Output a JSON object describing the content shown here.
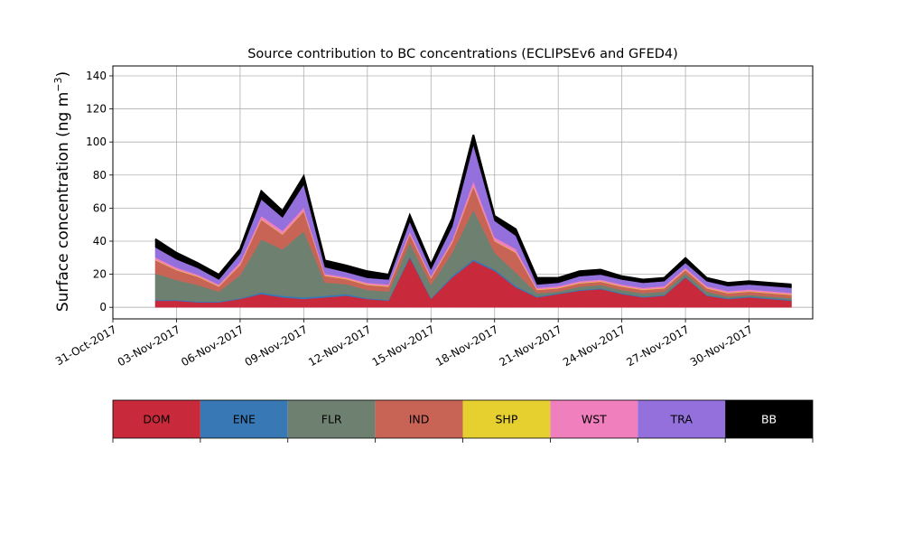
{
  "chart_data": {
    "type": "area",
    "stacked": true,
    "title": "Source contribution to BC concentrations (ECLIPSEv6 and GFED4)",
    "ylabel": "Surface concentration (ng m",
    "ylabel_sup": "−3",
    "ylabel_close": ")",
    "xlim": [
      "2017-10-31",
      "2017-12-03"
    ],
    "ylim": [
      -7,
      146
    ],
    "yticks": [
      0,
      20,
      40,
      60,
      80,
      100,
      120,
      140
    ],
    "xticks": [
      "31-Oct-2017",
      "03-Nov-2017",
      "06-Nov-2017",
      "09-Nov-2017",
      "12-Nov-2017",
      "15-Nov-2017",
      "18-Nov-2017",
      "21-Nov-2017",
      "24-Nov-2017",
      "27-Nov-2017",
      "30-Nov-2017"
    ],
    "grid": true,
    "legend_position": "bottom-colorbar",
    "x": [
      "2017-11-02",
      "2017-11-03",
      "2017-11-04",
      "2017-11-05",
      "2017-11-06",
      "2017-11-07",
      "2017-11-08",
      "2017-11-09",
      "2017-11-10",
      "2017-11-11",
      "2017-11-12",
      "2017-11-13",
      "2017-11-14",
      "2017-11-15",
      "2017-11-16",
      "2017-11-17",
      "2017-11-18",
      "2017-11-19",
      "2017-11-20",
      "2017-11-21",
      "2017-11-22",
      "2017-11-23",
      "2017-11-24",
      "2017-11-25",
      "2017-11-26",
      "2017-11-27",
      "2017-11-28",
      "2017-11-29",
      "2017-11-30",
      "2017-12-01",
      "2017-12-02"
    ],
    "series": [
      {
        "name": "DOM",
        "color": "#c8293b",
        "values": [
          4,
          4,
          3,
          3,
          5,
          8,
          6,
          5,
          6,
          7,
          5,
          4,
          30,
          5,
          18,
          28,
          22,
          12,
          6,
          8,
          10,
          11,
          8,
          6,
          7,
          18,
          7,
          5,
          6,
          5,
          4
        ]
      },
      {
        "name": "ENE",
        "color": "#3878b5",
        "values": [
          0.5,
          0.5,
          0.5,
          0.5,
          0.5,
          1,
          1,
          1,
          1,
          1,
          0.5,
          0.5,
          1,
          0.5,
          1,
          1,
          1,
          1,
          0.5,
          0.5,
          0.5,
          0.5,
          0.5,
          0.5,
          0.5,
          0.5,
          0.5,
          0.5,
          0.5,
          0.5,
          0.5
        ]
      },
      {
        "name": "FLR",
        "color": "#6e8070",
        "values": [
          16,
          12,
          10,
          6,
          14,
          32,
          28,
          40,
          8,
          6,
          5,
          5,
          8,
          8,
          14,
          30,
          10,
          8,
          2,
          1,
          2,
          2,
          2,
          2,
          2,
          2,
          2,
          1,
          1,
          1,
          1
        ]
      },
      {
        "name": "IND",
        "color": "#c86455",
        "values": [
          8,
          6,
          5,
          3,
          6,
          12,
          9,
          12,
          4,
          3,
          3,
          3,
          5,
          4,
          6,
          14,
          7,
          12,
          2,
          2,
          2,
          2,
          2,
          2,
          2,
          2,
          2,
          2,
          2,
          2,
          2
        ]
      },
      {
        "name": "SHP",
        "color": "#e6d030",
        "values": [
          0.3,
          0.3,
          0.3,
          0.3,
          0.3,
          0.3,
          0.3,
          0.3,
          0.3,
          0.3,
          0.3,
          0.3,
          0.3,
          0.3,
          0.3,
          0.3,
          0.3,
          0.3,
          0.3,
          0.3,
          0.3,
          0.3,
          0.3,
          0.3,
          0.3,
          0.3,
          0.3,
          0.3,
          0.3,
          0.3,
          0.3
        ]
      },
      {
        "name": "WST",
        "color": "#f07fbd",
        "values": [
          1.5,
          1.2,
          1,
          1,
          1.5,
          2,
          2,
          2,
          1,
          1,
          1,
          1,
          1.5,
          1,
          1.5,
          3,
          2,
          2,
          1,
          1,
          1,
          1,
          1,
          1,
          1,
          1,
          1,
          1,
          1,
          1,
          1
        ]
      },
      {
        "name": "TRA",
        "color": "#9370db",
        "values": [
          6,
          5,
          4,
          3,
          5,
          10,
          8,
          14,
          4,
          3,
          3,
          3,
          6,
          4,
          8,
          22,
          10,
          8,
          2,
          2,
          3,
          3,
          3,
          3,
          3,
          3,
          3,
          3,
          3,
          3,
          3
        ]
      },
      {
        "name": "BB",
        "color": "#000000",
        "values": [
          5,
          4,
          3,
          3,
          3,
          5,
          4,
          5,
          4,
          4,
          4,
          3,
          4,
          3,
          5,
          6,
          3,
          4,
          4,
          3,
          3,
          3,
          2,
          2,
          2,
          3,
          2,
          2,
          2,
          2,
          2
        ]
      }
    ]
  },
  "legend": {
    "entries": [
      {
        "label": "DOM",
        "color": "#c8293b",
        "text_color": "#000000"
      },
      {
        "label": "ENE",
        "color": "#3878b5",
        "text_color": "#000000"
      },
      {
        "label": "FLR",
        "color": "#6e8070",
        "text_color": "#000000"
      },
      {
        "label": "IND",
        "color": "#c86455",
        "text_color": "#000000"
      },
      {
        "label": "SHP",
        "color": "#e6d030",
        "text_color": "#000000"
      },
      {
        "label": "WST",
        "color": "#f07fbd",
        "text_color": "#000000"
      },
      {
        "label": "TRA",
        "color": "#9370db",
        "text_color": "#000000"
      },
      {
        "label": "BB",
        "color": "#000000",
        "text_color": "#ffffff"
      }
    ]
  }
}
